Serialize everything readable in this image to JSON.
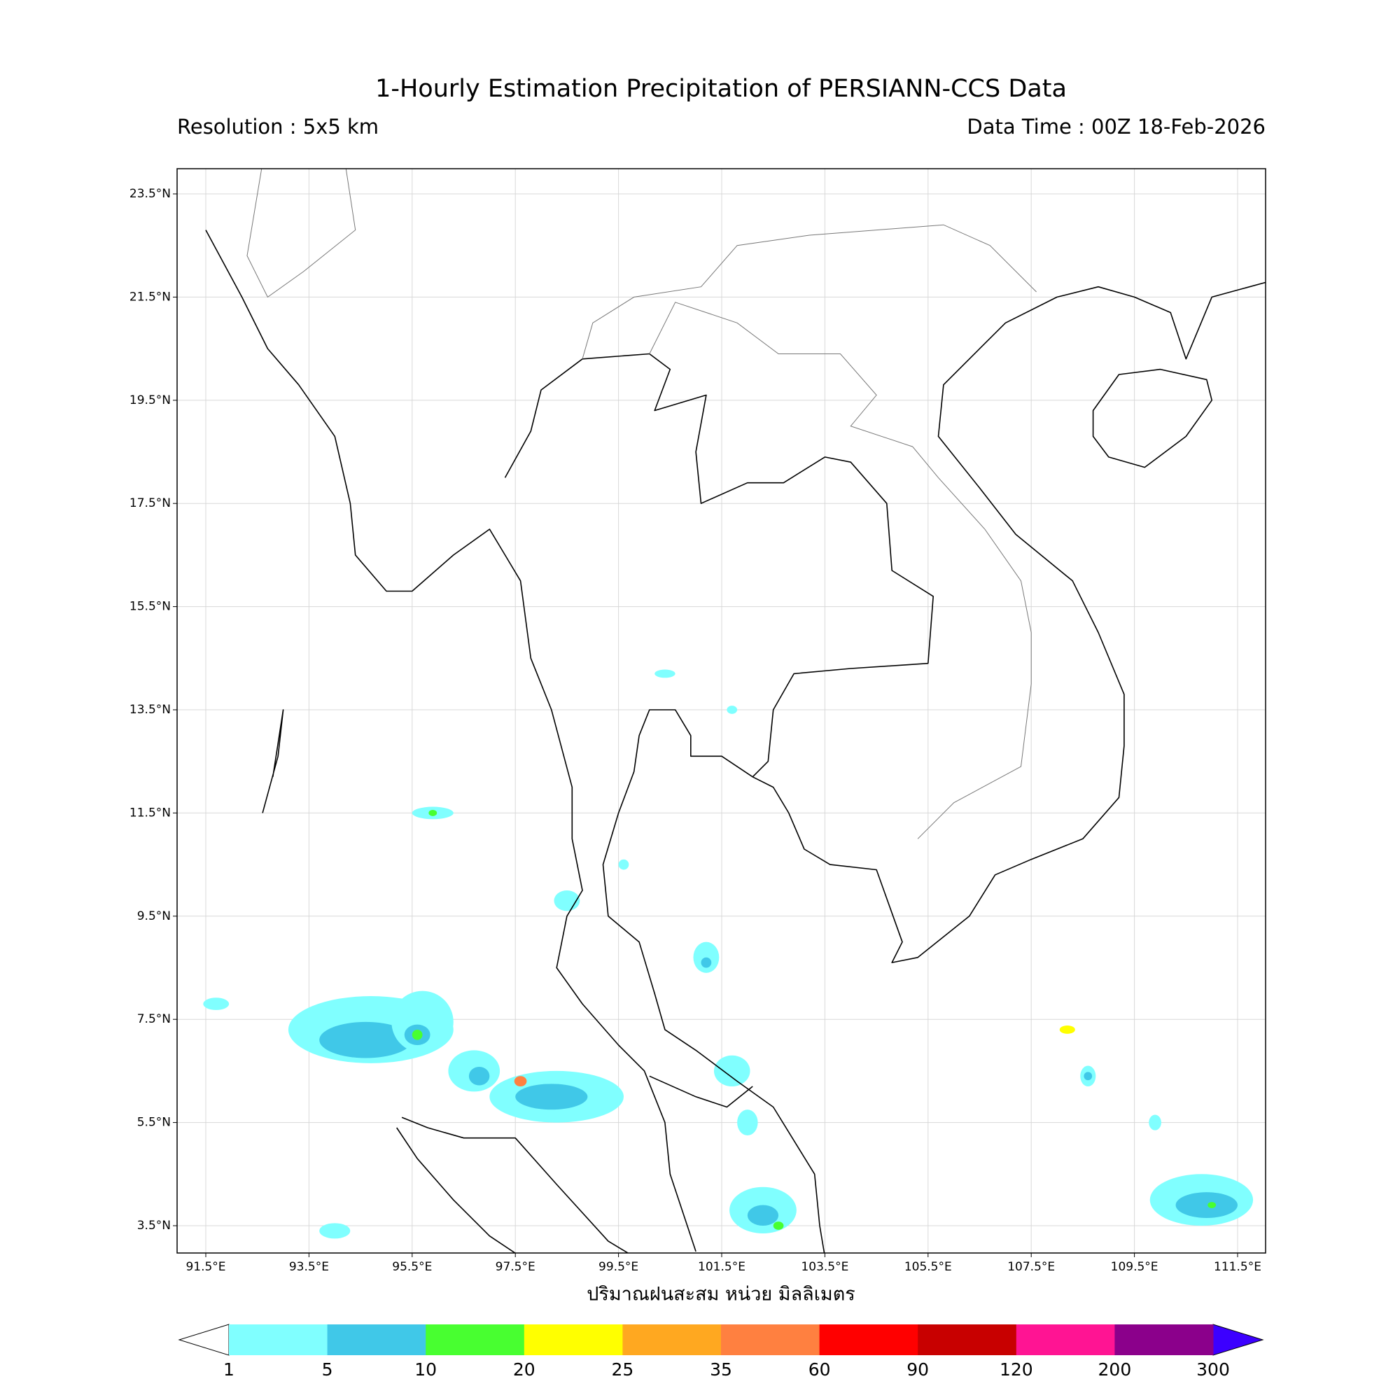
{
  "header": {
    "title": "1-Hourly Estimation Precipitation of PERSIANN-CCS Data",
    "resolution": "Resolution : 5x5 km",
    "data_time": "Data Time : 00Z 18-Feb-2026"
  },
  "map": {
    "lat_ticks": [
      "23.5°N",
      "21.5°N",
      "19.5°N",
      "17.5°N",
      "15.5°N",
      "13.5°N",
      "11.5°N",
      "9.5°N",
      "7.5°N",
      "5.5°N",
      "3.5°N"
    ],
    "lon_ticks": [
      "91.5°E",
      "93.5°E",
      "95.5°E",
      "97.5°E",
      "99.5°E",
      "101.5°E",
      "103.5°E",
      "105.5°E",
      "107.5°E",
      "109.5°E",
      "111.5°E"
    ],
    "axis_label": "ปริมาณฝนสะสม หน่วย มิลลิเมตร"
  },
  "colorbar": {
    "levels": [
      "1",
      "5",
      "10",
      "20",
      "25",
      "35",
      "60",
      "90",
      "120",
      "200",
      "300"
    ],
    "colors": [
      "#80ffff",
      "#40c8e8",
      "#48ff30",
      "#ffff00",
      "#ffa820",
      "#ff8040",
      "#ff0000",
      "#c80000",
      "#ff1493",
      "#8b008b"
    ],
    "under_color": "#ffffff",
    "over_color": "#3c00ff"
  }
}
